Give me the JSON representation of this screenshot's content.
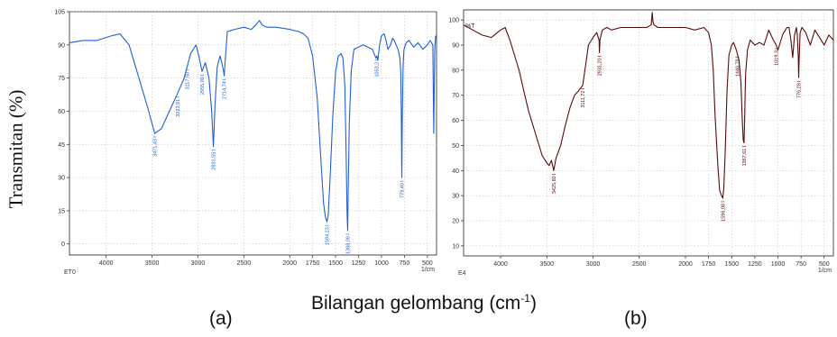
{
  "figure": {
    "y_label": "Transmitan (%)",
    "x_label": "Bilangan gelombang (cm",
    "x_label_sup": "-1",
    "x_label_end": ")",
    "panel_a": "(a)",
    "panel_b": "(b)"
  },
  "chart_data": [
    {
      "type": "line",
      "sample_label": "ET0",
      "y_unit": "",
      "x_unit": "1/cm",
      "xlim": [
        4400,
        400
      ],
      "ylim": [
        -5,
        105
      ],
      "x_ticks": [
        4000,
        3500,
        3000,
        2500,
        2000,
        1750,
        1500,
        1250,
        1000,
        750,
        500
      ],
      "y_ticks": [
        0,
        15,
        30,
        45,
        60,
        75,
        90,
        105
      ],
      "grid": true,
      "color": "#1f5fd6",
      "x": [
        4400,
        4250,
        4100,
        3950,
        3850,
        3750,
        3650,
        3550,
        3471,
        3400,
        3300,
        3223,
        3150,
        3080,
        3020,
        2985,
        2955,
        2920,
        2880,
        2850,
        2831,
        2815,
        2790,
        2760,
        2740,
        2720,
        2714,
        2705,
        2680,
        2600,
        2500,
        2420,
        2370,
        2330,
        2300,
        2250,
        2150,
        2000,
        1900,
        1850,
        1800,
        1750,
        1700,
        1660,
        1630,
        1610,
        1594,
        1580,
        1560,
        1530,
        1500,
        1470,
        1440,
        1420,
        1400,
        1385,
        1375,
        1368,
        1362,
        1350,
        1330,
        1300,
        1250,
        1200,
        1150,
        1100,
        1080,
        1060,
        1050,
        1040,
        1020,
        1000,
        970,
        950,
        930,
        900,
        880,
        860,
        840,
        820,
        800,
        790,
        784,
        778,
        772,
        765,
        755,
        730,
        700,
        650,
        600,
        550,
        500,
        470,
        440,
        430,
        420,
        410,
        400
      ],
      "y": [
        91,
        92,
        92,
        94,
        95,
        90,
        76,
        62,
        50,
        52,
        61,
        68,
        75,
        86,
        90,
        84,
        78,
        82,
        75,
        60,
        44,
        62,
        80,
        85,
        82,
        78,
        76,
        82,
        96,
        97,
        98,
        97,
        99,
        101,
        99,
        98,
        98,
        97,
        96,
        95,
        93,
        85,
        66,
        38,
        18,
        12,
        10,
        13,
        30,
        58,
        78,
        85,
        86,
        84,
        72,
        40,
        14,
        6,
        25,
        55,
        78,
        88,
        89,
        90,
        89,
        88,
        86,
        84,
        85,
        83,
        90,
        94,
        95,
        92,
        88,
        90,
        93,
        92,
        90,
        88,
        84,
        78,
        60,
        30,
        60,
        80,
        88,
        91,
        92,
        89,
        91,
        88,
        90,
        92,
        90,
        50,
        88,
        94,
        93
      ],
      "annotations": [
        {
          "x": 3471,
          "label": "3471,43"
        },
        {
          "x": 3223,
          "label": "3223,91"
        },
        {
          "x": 3117,
          "label": "3117,50"
        },
        {
          "x": 2955,
          "label": "2955,00"
        },
        {
          "x": 2831,
          "label": "2831,55"
        },
        {
          "x": 2714,
          "label": "2714,74"
        },
        {
          "x": 1594,
          "label": "1594,23"
        },
        {
          "x": 1368,
          "label": "1368,09"
        },
        {
          "x": 1053,
          "label": "1053,2"
        },
        {
          "x": 778,
          "label": "778,40"
        }
      ]
    },
    {
      "type": "line",
      "sample_label": "E4",
      "y_unit": "%T",
      "x_unit": "1/cm",
      "xlim": [
        4400,
        400
      ],
      "ylim": [
        6,
        104
      ],
      "x_ticks": [
        4000,
        3500,
        3000,
        2500,
        2000,
        1750,
        1500,
        1250,
        1000,
        750,
        500
      ],
      "y_ticks": [
        10,
        20,
        30,
        40,
        50,
        60,
        70,
        80,
        90,
        100
      ],
      "grid": true,
      "color": "#5a0a0a",
      "x": [
        4400,
        4300,
        4200,
        4100,
        4000,
        3950,
        3900,
        3850,
        3800,
        3750,
        3700,
        3650,
        3600,
        3550,
        3500,
        3475,
        3450,
        3425,
        3400,
        3350,
        3300,
        3250,
        3200,
        3150,
        3111,
        3080,
        3050,
        3000,
        2960,
        2935,
        2931,
        2925,
        2900,
        2850,
        2800,
        2700,
        2600,
        2500,
        2420,
        2370,
        2360,
        2350,
        2340,
        2300,
        2200,
        2100,
        2000,
        1900,
        1800,
        1750,
        1720,
        1700,
        1680,
        1650,
        1630,
        1610,
        1596,
        1585,
        1570,
        1550,
        1530,
        1500,
        1480,
        1450,
        1420,
        1400,
        1385,
        1375,
        1367,
        1360,
        1350,
        1330,
        1300,
        1250,
        1200,
        1150,
        1100,
        1050,
        1019,
        1000,
        950,
        920,
        900,
        880,
        860,
        840,
        820,
        800,
        790,
        780,
        776,
        770,
        760,
        740,
        700,
        650,
        600,
        550,
        500,
        450,
        400
      ],
      "y": [
        98,
        96,
        94,
        93,
        96,
        97,
        92,
        86,
        80,
        72,
        64,
        58,
        52,
        46,
        43,
        42,
        44,
        40,
        45,
        50,
        58,
        65,
        70,
        72,
        74,
        82,
        90,
        93,
        95,
        92,
        87,
        92,
        96,
        97,
        96,
        97,
        97,
        97,
        97,
        98,
        103,
        99,
        98,
        97,
        97,
        97,
        97,
        96,
        97,
        95,
        90,
        80,
        62,
        42,
        32,
        30,
        29,
        33,
        48,
        72,
        86,
        90,
        91,
        88,
        84,
        75,
        60,
        52,
        51,
        60,
        78,
        88,
        92,
        90,
        91,
        90,
        96,
        92,
        90,
        88,
        94,
        96,
        97,
        97,
        92,
        85,
        94,
        97,
        94,
        85,
        77,
        85,
        95,
        97,
        95,
        90,
        96,
        93,
        90,
        94,
        92
      ],
      "annotations": [
        {
          "x": 3425,
          "label": "3425,60"
        },
        {
          "x": 3111,
          "label": "3111,72"
        },
        {
          "x": 2931,
          "label": "2931,20"
        },
        {
          "x": 1596,
          "label": "1596,08"
        },
        {
          "x": 1440,
          "label": "1440,78"
        },
        {
          "x": 1367,
          "label": "1367,61"
        },
        {
          "x": 1019,
          "label": "1019,3"
        },
        {
          "x": 776,
          "label": "776,28"
        }
      ]
    }
  ]
}
